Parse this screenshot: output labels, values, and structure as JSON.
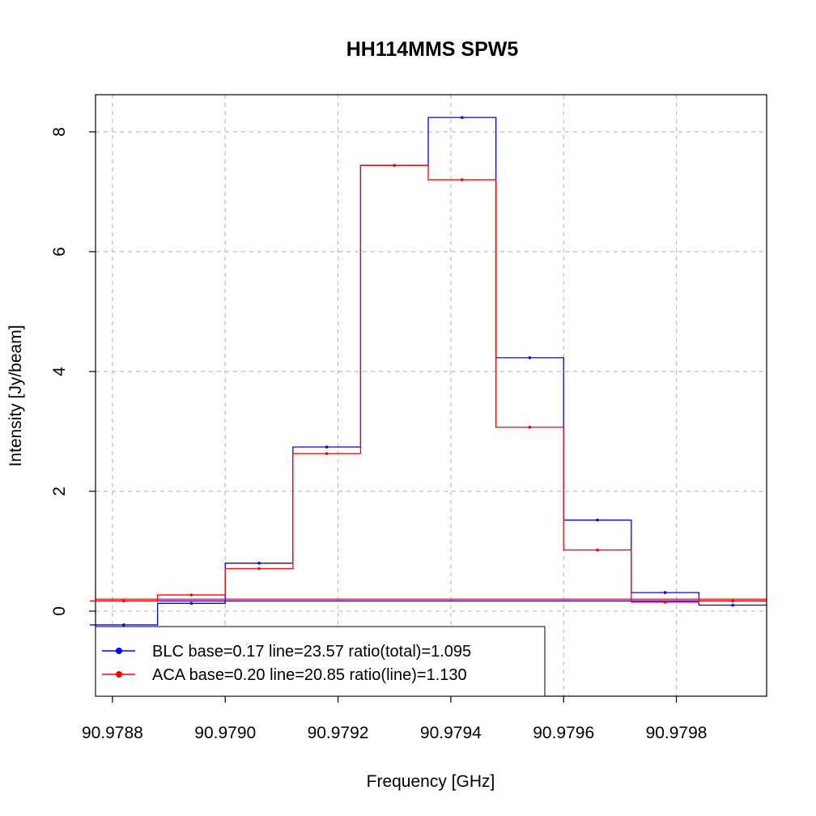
{
  "chart_data": {
    "type": "line",
    "title": "HH114MMS SPW5",
    "xlabel": "Frequency [GHz]",
    "ylabel": "Intensity [Jy/beam]",
    "xlim": [
      90.97877,
      90.97996
    ],
    "ylim": [
      -1.42,
      8.62
    ],
    "grid": true,
    "x_ticks": [
      90.9788,
      90.979,
      90.9792,
      90.9794,
      90.9796,
      90.9798
    ],
    "x_tick_labels": [
      "90.9788",
      "90.9790",
      "90.9792",
      "90.9794",
      "90.9796",
      "90.9798"
    ],
    "y_ticks": [
      0,
      2,
      4,
      6,
      8
    ],
    "y_tick_labels": [
      "0",
      "2",
      "4",
      "6",
      "8"
    ],
    "legend_position": "bottom-left",
    "series": [
      {
        "name": "BLC base=0.17 line=23.57 ratio(total)=1.095",
        "color": "#0000ff",
        "style": "step",
        "baseline": 0.17,
        "x": [
          90.97882,
          90.97894,
          90.97906,
          90.97918,
          90.9793,
          90.97942,
          90.97954,
          90.97966,
          90.97978,
          90.9799
        ],
        "values": [
          -0.23,
          0.13,
          0.8,
          2.74,
          7.44,
          8.24,
          4.23,
          1.52,
          0.31,
          0.1
        ]
      },
      {
        "name": "ACA base=0.20 line=20.85 ratio(line)=1.130",
        "color": "#ff0000",
        "style": "step",
        "baseline": 0.2,
        "x": [
          90.97882,
          90.97894,
          90.97906,
          90.97918,
          90.9793,
          90.97942,
          90.97954,
          90.97966,
          90.97978,
          90.9799
        ],
        "values": [
          0.17,
          0.27,
          0.71,
          2.63,
          7.44,
          7.2,
          3.07,
          1.02,
          0.15,
          0.17
        ]
      }
    ]
  }
}
